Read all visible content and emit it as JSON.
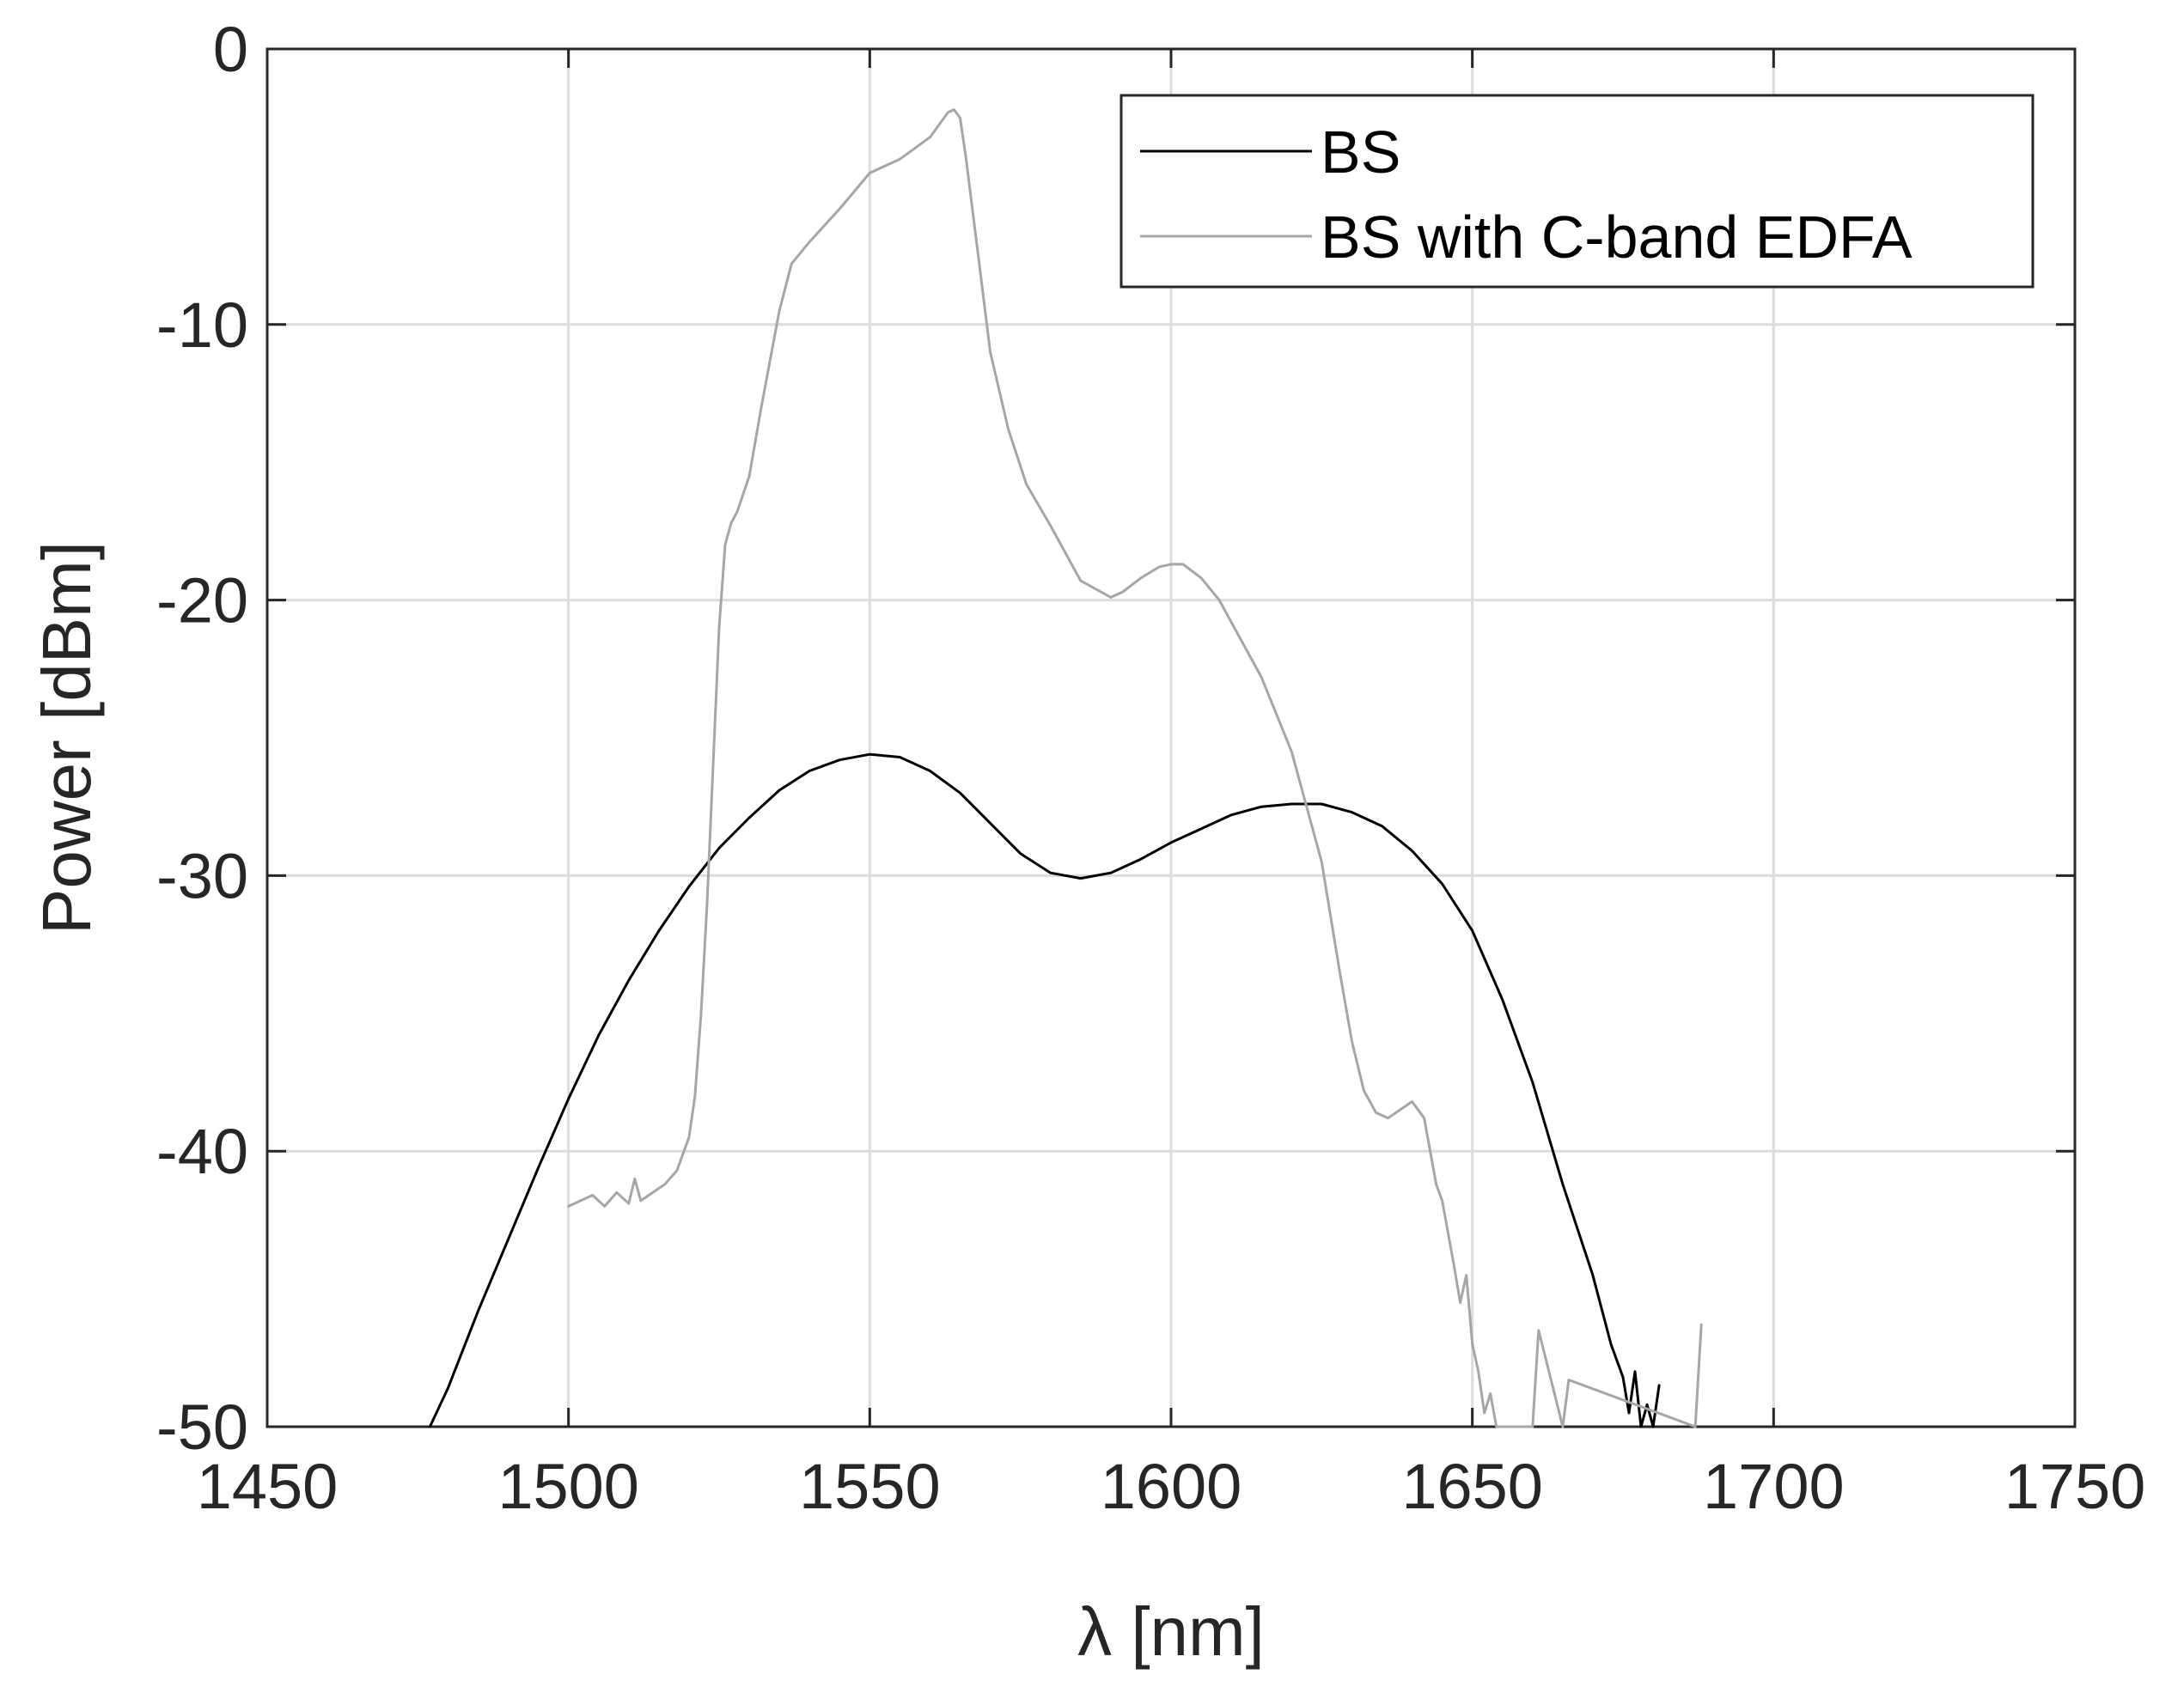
{
  "chart_data": {
    "type": "line",
    "title": "",
    "xlabel": "λ [nm]",
    "ylabel": "Power [dBm]",
    "xlim": [
      1450,
      1750
    ],
    "ylim": [
      -50,
      0
    ],
    "xticks": [
      1450,
      1500,
      1550,
      1600,
      1650,
      1700,
      1750
    ],
    "yticks": [
      0,
      -10,
      -20,
      -30,
      -40,
      -50
    ],
    "xtick_labels": [
      "1450",
      "1500",
      "1550",
      "1600",
      "1650",
      "1700",
      "1750"
    ],
    "ytick_labels": [
      "0",
      "-10",
      "-20",
      "-30",
      "-40",
      "-50"
    ],
    "grid": true,
    "legend_position": "top-right",
    "series": [
      {
        "name": "BS",
        "color": "#000000",
        "x": [
          1477,
          1480,
          1485,
          1490,
          1495,
          1500,
          1505,
          1510,
          1515,
          1520,
          1525,
          1530,
          1535,
          1540,
          1545,
          1550,
          1555,
          1560,
          1565,
          1570,
          1575,
          1580,
          1585,
          1590,
          1595,
          1600,
          1605,
          1610,
          1615,
          1620,
          1625,
          1630,
          1635,
          1640,
          1645,
          1650,
          1655,
          1660,
          1665,
          1670,
          1673,
          1675,
          1676,
          1677,
          1678,
          1679,
          1680,
          1681
        ],
        "y": [
          -50,
          -48.6,
          -45.8,
          -43.2,
          -40.6,
          -38.1,
          -35.8,
          -33.8,
          -32,
          -30.4,
          -29,
          -27.9,
          -26.9,
          -26.2,
          -25.8,
          -25.6,
          -25.7,
          -26.2,
          -27,
          -28.1,
          -29.2,
          -29.9,
          -30.1,
          -29.9,
          -29.4,
          -28.8,
          -28.3,
          -27.8,
          -27.5,
          -27.4,
          -27.4,
          -27.7,
          -28.2,
          -29.1,
          -30.3,
          -32,
          -34.5,
          -37.5,
          -41.2,
          -44.5,
          -47,
          -48.2,
          -49.5,
          -48,
          -50,
          -49.2,
          -50,
          -48.5
        ]
      },
      {
        "name": "BS with C-band EDFA",
        "color": "#a6a6a6",
        "x": [
          1500,
          1502,
          1504,
          1506,
          1508,
          1510,
          1511,
          1512,
          1514,
          1516,
          1518,
          1520,
          1521,
          1522,
          1523,
          1524,
          1525,
          1526,
          1527,
          1528,
          1530,
          1532,
          1535,
          1537,
          1540,
          1545,
          1550,
          1555,
          1560,
          1562,
          1563,
          1564,
          1565,
          1566,
          1568,
          1570,
          1573,
          1576,
          1580,
          1585,
          1590,
          1592,
          1595,
          1598,
          1600,
          1602,
          1605,
          1608,
          1610,
          1615,
          1620,
          1625,
          1628,
          1630,
          1632,
          1634,
          1636,
          1638,
          1640,
          1642,
          1643,
          1644,
          1645,
          1646,
          1647,
          1648,
          1649,
          1650,
          1651,
          1652,
          1653,
          1654,
          1660,
          1661,
          1665,
          1666,
          1687,
          1688
        ],
        "y": [
          -42,
          -41.8,
          -41.6,
          -42,
          -41.5,
          -41.9,
          -41,
          -41.8,
          -41.5,
          -41.2,
          -40.7,
          -39.5,
          -38,
          -35,
          -31,
          -26,
          -21,
          -18,
          -17.2,
          -16.8,
          -15.5,
          -13,
          -9.5,
          -7.8,
          -7,
          -5.8,
          -4.5,
          -4,
          -3.2,
          -2.6,
          -2.3,
          -2.2,
          -2.5,
          -4,
          -7.5,
          -11,
          -13.8,
          -15.8,
          -17.3,
          -19.3,
          -19.9,
          -19.7,
          -19.2,
          -18.8,
          -18.7,
          -18.7,
          -19.2,
          -20,
          -20.8,
          -22.8,
          -25.5,
          -29.5,
          -33.5,
          -36,
          -37.8,
          -38.6,
          -38.8,
          -38.5,
          -38.2,
          -38.8,
          -40,
          -41.2,
          -41.8,
          -43,
          -44.2,
          -45.5,
          -44.5,
          -47,
          -48,
          -49.5,
          -48.8,
          -50,
          -50,
          -46.5,
          -50,
          -48.3,
          -50,
          -46.3
        ]
      }
    ]
  }
}
